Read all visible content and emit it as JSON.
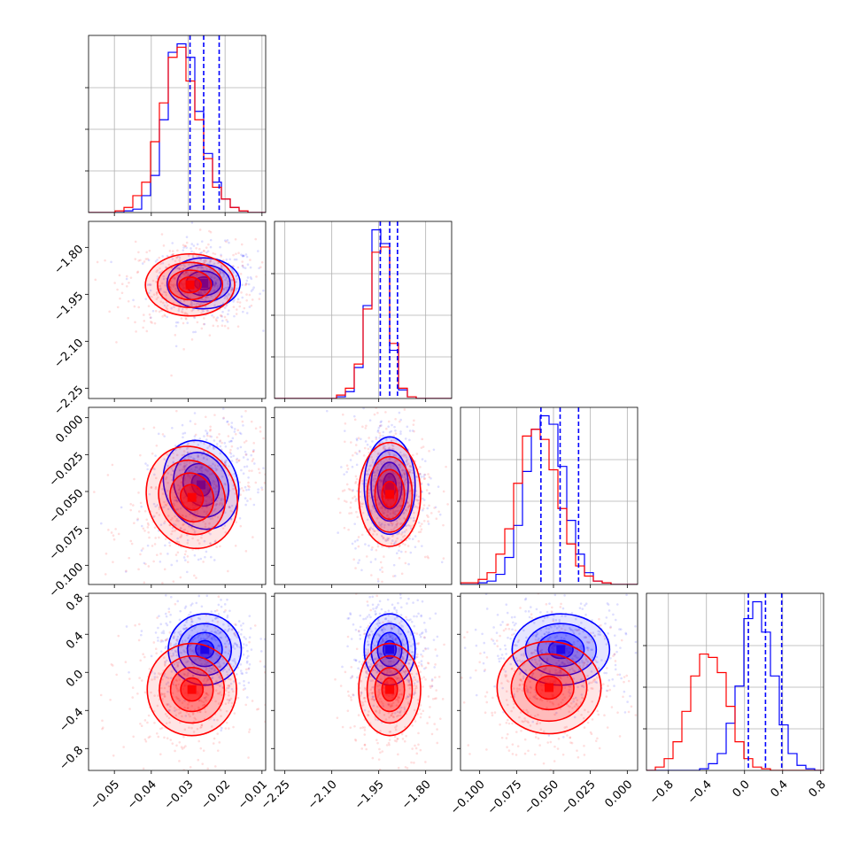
{
  "chart_data": {
    "type": "corner",
    "title": "",
    "colors": {
      "blue": "#0000ff",
      "red": "#ff0000"
    },
    "grid": true,
    "params": [
      {
        "range": [
          -0.057,
          -0.009
        ],
        "ticks": [
          -0.05,
          -0.04,
          -0.03,
          -0.02,
          -0.01
        ],
        "labels": [
          "−0.05",
          "−0.04",
          "−0.03",
          "−0.02",
          "−0.01"
        ]
      },
      {
        "range": [
          -2.283,
          -1.717
        ],
        "ticks": [
          -2.25,
          -2.1,
          -1.95,
          -1.8
        ],
        "labels": [
          "−2.25",
          "−2.10",
          "−1.95",
          "−1.80"
        ]
      },
      {
        "range": [
          -0.113,
          0.007
        ],
        "ticks": [
          -0.1,
          -0.075,
          -0.05,
          -0.025,
          0.0
        ],
        "labels": [
          "−0.100",
          "−0.075",
          "−0.050",
          "−0.025",
          "0.000"
        ]
      },
      {
        "range": [
          -1.03,
          0.83
        ],
        "ticks": [
          -0.8,
          -0.4,
          0.0,
          0.4,
          0.8
        ],
        "labels": [
          "−0.8",
          "−0.4",
          "0.0",
          "0.4",
          "0.8"
        ]
      }
    ],
    "quantiles_blue": [
      [
        -0.0295,
        -0.0258,
        -0.0216
      ],
      [
        -1.945,
        -1.915,
        -1.89
      ],
      [
        -0.0585,
        -0.0455,
        -0.033
      ],
      [
        0.04,
        0.22,
        0.39
      ]
    ],
    "hist": [
      {
        "edges_start": -0.057,
        "bin_width": 0.0024,
        "blue": [
          0,
          0,
          0,
          0,
          1,
          2,
          10,
          22,
          55,
          95,
          100,
          92,
          60,
          35,
          18,
          8,
          3,
          1,
          0,
          0
        ],
        "red": [
          0,
          0,
          0,
          1,
          3,
          10,
          18,
          42,
          65,
          92,
          98,
          78,
          55,
          32,
          15,
          8,
          3,
          1,
          0,
          0
        ]
      },
      {
        "edges_start": -2.283,
        "bin_width": 0.0283,
        "blue": [
          0,
          0,
          0,
          0,
          0,
          0,
          0,
          1,
          4,
          18,
          54,
          98,
          90,
          28,
          5,
          1,
          0,
          0,
          0,
          0
        ],
        "red": [
          0,
          0,
          0,
          0,
          0,
          0,
          0,
          2,
          6,
          20,
          52,
          85,
          88,
          32,
          6,
          1,
          0,
          0,
          0,
          0
        ]
      },
      {
        "edges_start": -0.113,
        "bin_width": 0.006,
        "blue": [
          0,
          0,
          1,
          2,
          6,
          16,
          35,
          67,
          92,
          100,
          95,
          70,
          38,
          18,
          7,
          2,
          1,
          0,
          0,
          0
        ],
        "red": [
          1,
          1,
          3,
          7,
          18,
          33,
          60,
          88,
          92,
          86,
          68,
          45,
          24,
          11,
          5,
          2,
          1,
          0,
          0,
          0
        ]
      },
      {
        "edges_start": -1.03,
        "bin_width": 0.093,
        "blue": [
          0,
          0,
          0,
          0,
          0,
          0,
          1,
          4,
          10,
          28,
          50,
          90,
          100,
          82,
          56,
          27,
          10,
          3,
          1,
          0
        ],
        "red": [
          0,
          2,
          7,
          17,
          35,
          56,
          69,
          67,
          58,
          38,
          17,
          7,
          2,
          1,
          0,
          0,
          0,
          0,
          0,
          0
        ]
      }
    ],
    "blobs": [
      {
        "row": 1,
        "col": 0,
        "blue": {
          "mean": [
            -0.0258,
            -1.915
          ],
          "sd": [
            0.0045,
            0.037
          ],
          "rho": 0.0
        },
        "red": {
          "mean": [
            -0.0295,
            -1.92
          ],
          "sd": [
            0.0055,
            0.045
          ],
          "rho": 0.0
        }
      },
      {
        "row": 2,
        "col": 0,
        "blue": {
          "mean": [
            -0.0265,
            -0.0455
          ],
          "sd": [
            0.0045,
            0.014
          ],
          "rho": 0.35
        },
        "red": {
          "mean": [
            -0.029,
            -0.054
          ],
          "sd": [
            0.0055,
            0.016
          ],
          "rho": 0.35
        }
      },
      {
        "row": 2,
        "col": 1,
        "blue": {
          "mean": [
            -1.915,
            -0.046
          ],
          "sd": [
            0.037,
            0.015
          ],
          "rho": 0.0
        },
        "red": {
          "mean": [
            -1.915,
            -0.052
          ],
          "sd": [
            0.045,
            0.016
          ],
          "rho": 0.0
        }
      },
      {
        "row": 3,
        "col": 0,
        "blue": {
          "mean": [
            -0.0255,
            0.24
          ],
          "sd": [
            0.0045,
            0.17
          ],
          "rho": 0.0
        },
        "red": {
          "mean": [
            -0.029,
            -0.18
          ],
          "sd": [
            0.0055,
            0.22
          ],
          "rho": 0.0
        }
      },
      {
        "row": 3,
        "col": 1,
        "blue": {
          "mean": [
            -1.915,
            0.24
          ],
          "sd": [
            0.037,
            0.17
          ],
          "rho": 0.0
        },
        "red": {
          "mean": [
            -1.915,
            -0.18
          ],
          "sd": [
            0.045,
            0.22
          ],
          "rho": 0.0
        }
      },
      {
        "row": 3,
        "col": 2,
        "blue": {
          "mean": [
            -0.045,
            0.24
          ],
          "sd": [
            0.015,
            0.17
          ],
          "rho": 0.0
        },
        "red": {
          "mean": [
            -0.053,
            -0.16
          ],
          "sd": [
            0.016,
            0.22
          ],
          "rho": 0.0
        }
      }
    ]
  }
}
